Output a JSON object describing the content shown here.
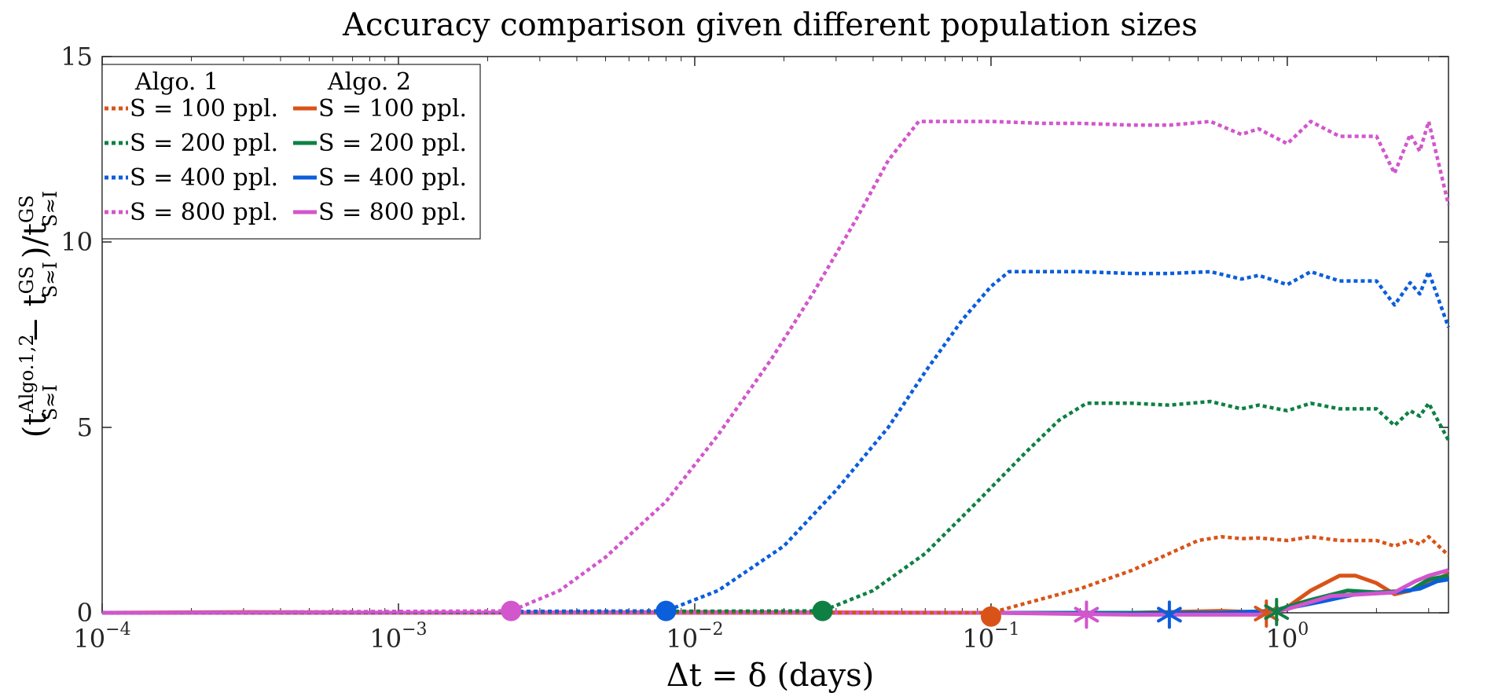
{
  "chart_data": {
    "type": "line",
    "title": "Accuracy comparison given different population sizes",
    "xlabel": "Δt = δ (days)",
    "ylabel_main": "(t",
    "ylabel_sup1": "Algo.1,2",
    "ylabel_sub": "S≈I",
    "ylabel_mid": " − t",
    "ylabel_sup2": "GS",
    "ylabel_end": ")/t",
    "xscale": "log",
    "xlim": [
      0.0001,
      3.5
    ],
    "ylim": [
      0,
      15
    ],
    "yticks": [
      0,
      5,
      10,
      15
    ],
    "xticks": [
      {
        "value": 0.0001,
        "base": "10",
        "exp": "−4"
      },
      {
        "value": 0.001,
        "base": "10",
        "exp": "−3"
      },
      {
        "value": 0.01,
        "base": "10",
        "exp": "−2"
      },
      {
        "value": 0.1,
        "base": "10",
        "exp": "−1"
      },
      {
        "value": 1,
        "base": "10",
        "exp": "0"
      }
    ],
    "legend": {
      "placement": "top-left",
      "col1_title": "Algo. 1",
      "col2_title": "Algo. 2"
    },
    "series": [
      {
        "name": "S = 100 ppl.",
        "algo": 1,
        "style": "dotted",
        "color": "#D95319",
        "points": [
          [
            0.0001,
            0.0
          ],
          [
            0.1,
            0.0
          ],
          [
            0.13,
            0.25
          ],
          [
            0.2,
            0.65
          ],
          [
            0.3,
            1.15
          ],
          [
            0.4,
            1.6
          ],
          [
            0.5,
            1.95
          ],
          [
            0.6,
            2.05
          ],
          [
            0.7,
            2.0
          ],
          [
            0.8,
            2.02
          ],
          [
            1.0,
            1.95
          ],
          [
            1.2,
            2.05
          ],
          [
            1.5,
            1.95
          ],
          [
            2.0,
            1.95
          ],
          [
            2.3,
            1.8
          ],
          [
            2.6,
            1.95
          ],
          [
            2.8,
            1.85
          ],
          [
            3.0,
            2.05
          ],
          [
            3.5,
            1.55
          ]
        ]
      },
      {
        "name": "S = 200 ppl.",
        "algo": 1,
        "style": "dotted",
        "color": "#0E8044",
        "points": [
          [
            0.0001,
            0.0
          ],
          [
            0.027,
            0.05
          ],
          [
            0.04,
            0.6
          ],
          [
            0.06,
            1.6
          ],
          [
            0.09,
            3.0
          ],
          [
            0.13,
            4.3
          ],
          [
            0.17,
            5.2
          ],
          [
            0.21,
            5.65
          ],
          [
            0.3,
            5.65
          ],
          [
            0.4,
            5.6
          ],
          [
            0.55,
            5.7
          ],
          [
            0.7,
            5.5
          ],
          [
            0.8,
            5.6
          ],
          [
            1.0,
            5.45
          ],
          [
            1.2,
            5.65
          ],
          [
            1.5,
            5.5
          ],
          [
            2.0,
            5.5
          ],
          [
            2.3,
            5.05
          ],
          [
            2.6,
            5.45
          ],
          [
            2.8,
            5.3
          ],
          [
            3.0,
            5.65
          ],
          [
            3.5,
            4.65
          ]
        ]
      },
      {
        "name": "S = 400 ppl.",
        "algo": 1,
        "style": "dotted",
        "color": "#0B5EDC",
        "points": [
          [
            0.0001,
            0.0
          ],
          [
            0.008,
            0.05
          ],
          [
            0.012,
            0.6
          ],
          [
            0.02,
            1.8
          ],
          [
            0.03,
            3.3
          ],
          [
            0.045,
            5.0
          ],
          [
            0.06,
            6.5
          ],
          [
            0.08,
            7.9
          ],
          [
            0.1,
            8.8
          ],
          [
            0.115,
            9.2
          ],
          [
            0.2,
            9.2
          ],
          [
            0.3,
            9.15
          ],
          [
            0.4,
            9.15
          ],
          [
            0.55,
            9.2
          ],
          [
            0.7,
            9.0
          ],
          [
            0.8,
            9.1
          ],
          [
            1.0,
            8.85
          ],
          [
            1.2,
            9.2
          ],
          [
            1.5,
            8.95
          ],
          [
            2.0,
            8.95
          ],
          [
            2.3,
            8.3
          ],
          [
            2.6,
            8.9
          ],
          [
            2.8,
            8.6
          ],
          [
            3.0,
            9.2
          ],
          [
            3.5,
            7.7
          ]
        ]
      },
      {
        "name": "S = 800 ppl.",
        "algo": 1,
        "style": "dotted",
        "color": "#D256CC",
        "points": [
          [
            0.0001,
            0.0
          ],
          [
            0.0024,
            0.05
          ],
          [
            0.0035,
            0.6
          ],
          [
            0.005,
            1.5
          ],
          [
            0.008,
            3.0
          ],
          [
            0.012,
            4.8
          ],
          [
            0.018,
            6.8
          ],
          [
            0.025,
            8.6
          ],
          [
            0.035,
            10.6
          ],
          [
            0.045,
            12.2
          ],
          [
            0.057,
            13.25
          ],
          [
            0.1,
            13.25
          ],
          [
            0.15,
            13.2
          ],
          [
            0.2,
            13.2
          ],
          [
            0.3,
            13.15
          ],
          [
            0.4,
            13.15
          ],
          [
            0.55,
            13.25
          ],
          [
            0.7,
            12.9
          ],
          [
            0.8,
            13.05
          ],
          [
            1.0,
            12.65
          ],
          [
            1.2,
            13.25
          ],
          [
            1.5,
            12.85
          ],
          [
            2.0,
            12.85
          ],
          [
            2.3,
            11.85
          ],
          [
            2.6,
            12.9
          ],
          [
            2.8,
            12.45
          ],
          [
            3.0,
            13.25
          ],
          [
            3.5,
            11.0
          ]
        ]
      },
      {
        "name": "S = 100 ppl.",
        "algo": 2,
        "style": "solid",
        "color": "#D95319",
        "points": [
          [
            0.0001,
            0.0
          ],
          [
            0.0003,
            0.02
          ],
          [
            0.001,
            0.0
          ],
          [
            0.01,
            0.02
          ],
          [
            0.1,
            0.0
          ],
          [
            0.3,
            0.0
          ],
          [
            0.6,
            0.05
          ],
          [
            0.9,
            0.0
          ],
          [
            1.0,
            0.15
          ],
          [
            1.2,
            0.6
          ],
          [
            1.5,
            1.0
          ],
          [
            1.7,
            1.0
          ],
          [
            2.0,
            0.8
          ],
          [
            2.3,
            0.5
          ],
          [
            2.6,
            0.6
          ],
          [
            3.0,
            0.8
          ],
          [
            3.5,
            1.05
          ]
        ]
      },
      {
        "name": "S = 200 ppl.",
        "algo": 2,
        "style": "solid",
        "color": "#0E8044",
        "points": [
          [
            0.0001,
            0.0
          ],
          [
            0.01,
            0.0
          ],
          [
            0.1,
            0.0
          ],
          [
            0.3,
            0.0
          ],
          [
            0.6,
            0.0
          ],
          [
            0.9,
            0.05
          ],
          [
            1.2,
            0.35
          ],
          [
            1.6,
            0.6
          ],
          [
            2.0,
            0.55
          ],
          [
            2.6,
            0.6
          ],
          [
            3.0,
            0.9
          ],
          [
            3.5,
            1.0
          ]
        ]
      },
      {
        "name": "S = 400 ppl.",
        "algo": 2,
        "style": "solid",
        "color": "#0B5EDC",
        "points": [
          [
            0.0001,
            0.0
          ],
          [
            0.01,
            0.0
          ],
          [
            0.1,
            0.0
          ],
          [
            0.3,
            -0.02
          ],
          [
            0.6,
            0.0
          ],
          [
            0.9,
            0.05
          ],
          [
            1.3,
            0.3
          ],
          [
            1.7,
            0.5
          ],
          [
            2.3,
            0.55
          ],
          [
            2.8,
            0.65
          ],
          [
            3.2,
            0.85
          ],
          [
            3.5,
            0.9
          ]
        ]
      },
      {
        "name": "S = 800 ppl.",
        "algo": 2,
        "style": "solid",
        "color": "#D256CC",
        "points": [
          [
            0.0001,
            0.0
          ],
          [
            0.01,
            0.0
          ],
          [
            0.1,
            0.0
          ],
          [
            0.3,
            -0.05
          ],
          [
            0.6,
            -0.05
          ],
          [
            0.8,
            -0.05
          ],
          [
            1.0,
            0.1
          ],
          [
            1.4,
            0.45
          ],
          [
            1.8,
            0.5
          ],
          [
            2.3,
            0.55
          ],
          [
            2.7,
            0.85
          ],
          [
            3.0,
            1.0
          ],
          [
            3.5,
            1.15
          ]
        ]
      }
    ],
    "markers": [
      {
        "shape": "circle",
        "color": "#D256CC",
        "x": 0.0024,
        "y": 0.05
      },
      {
        "shape": "circle",
        "color": "#0B5EDC",
        "x": 0.008,
        "y": 0.05
      },
      {
        "shape": "circle",
        "color": "#0E8044",
        "x": 0.027,
        "y": 0.05
      },
      {
        "shape": "circle",
        "color": "#D95319",
        "x": 0.1,
        "y": -0.1
      },
      {
        "shape": "asterisk",
        "color": "#D256CC",
        "x": 0.21,
        "y": -0.05
      },
      {
        "shape": "asterisk",
        "color": "#0B5EDC",
        "x": 0.4,
        "y": -0.05
      },
      {
        "shape": "asterisk",
        "color": "#D95319",
        "x": 0.85,
        "y": -0.02
      },
      {
        "shape": "asterisk",
        "color": "#0E8044",
        "x": 0.92,
        "y": 0.02
      }
    ]
  }
}
